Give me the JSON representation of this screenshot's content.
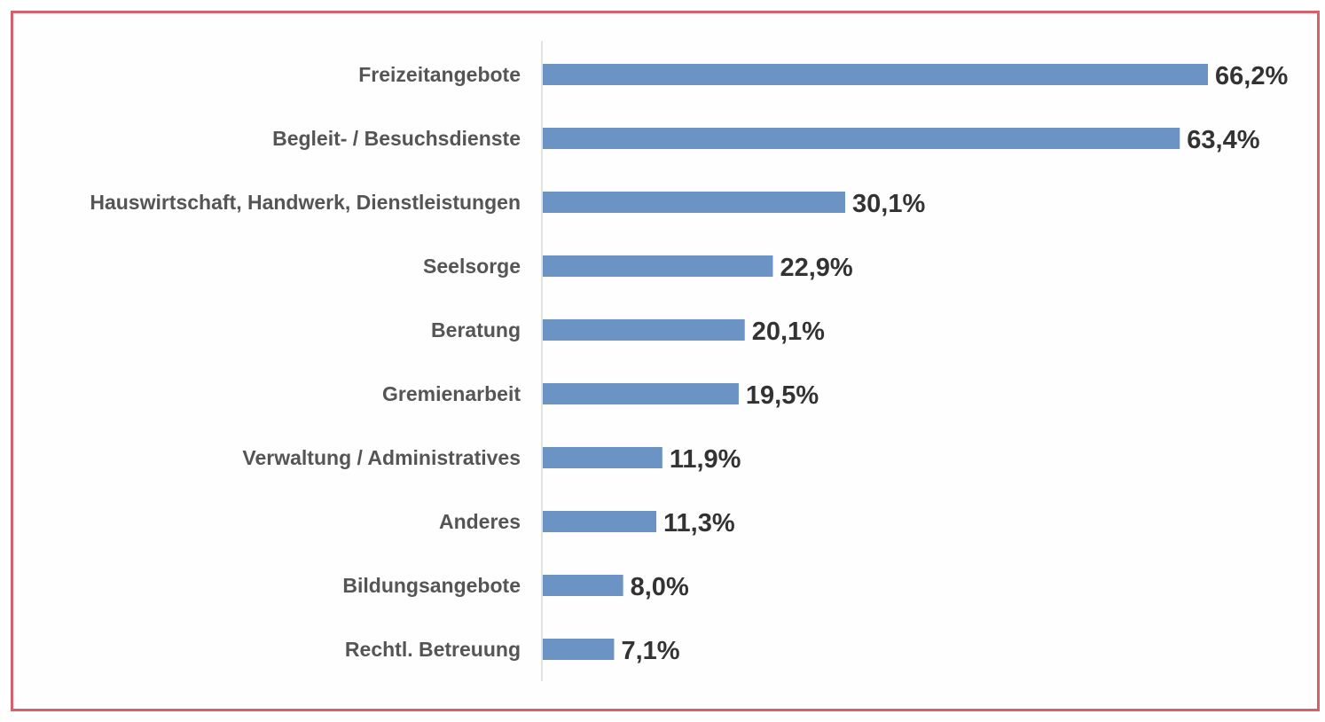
{
  "chart_data": {
    "type": "bar",
    "orientation": "horizontal",
    "title": "",
    "xlabel": "",
    "ylabel": "",
    "categories": [
      "Freizeitangebote",
      "Begleit- / Besuchsdienste",
      "Hauswirtschaft, Handwerk, Dienstleistungen",
      "Seelsorge",
      "Beratung",
      "Gremienarbeit",
      "Verwaltung / Administratives",
      "Anderes",
      "Bildungsangebote",
      "Rechtl. Betreuung"
    ],
    "values": [
      66.2,
      63.4,
      30.1,
      22.9,
      20.1,
      19.5,
      11.9,
      11.3,
      8.0,
      7.1
    ],
    "value_labels": [
      "66,2%",
      "63,4%",
      "30,1%",
      "22,9%",
      "20,1%",
      "19,5%",
      "11,9%",
      "11,3%",
      "8,0%",
      "7,1%"
    ],
    "unit": "%",
    "xlim": [
      0,
      66.2
    ],
    "grid": false,
    "legend": "none"
  },
  "colors": {
    "bar": "#6b93c4",
    "axis": "#d9d9d9",
    "frame": "#d95f6a",
    "category_text": "#555555",
    "value_text": "#333333"
  }
}
